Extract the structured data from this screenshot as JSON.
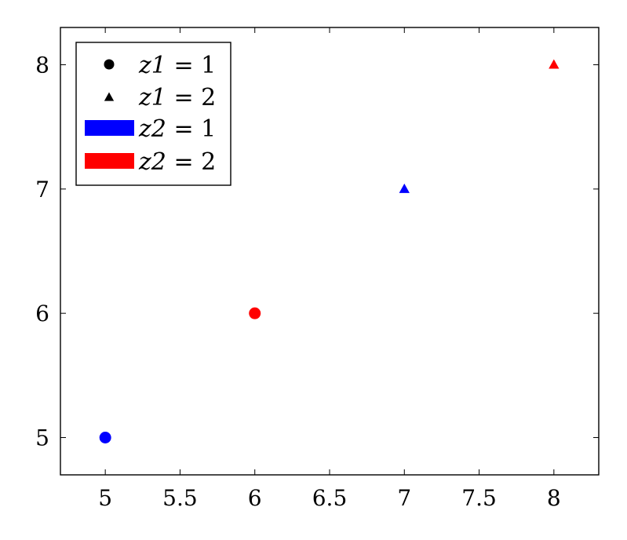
{
  "chart_data": {
    "type": "scatter",
    "title": "",
    "xlabel": "",
    "ylabel": "",
    "xlim": [
      4.7,
      8.3
    ],
    "ylim": [
      4.7,
      8.3
    ],
    "xticks": [
      5,
      5.5,
      6,
      6.5,
      7,
      7.5,
      8
    ],
    "yticks": [
      5,
      6,
      7,
      8
    ],
    "xtick_labels": [
      "5",
      "5.5",
      "6",
      "6.5",
      "7",
      "7.5",
      "8"
    ],
    "ytick_labels": [
      "5",
      "6",
      "7",
      "8"
    ],
    "grid": false,
    "legend_position": "top-left",
    "colors": {
      "z2_1": "#0000ff",
      "z2_2": "#ff0000",
      "legend_marker": "#000000"
    },
    "points": [
      {
        "x": 5,
        "y": 5,
        "z1": 1,
        "z2": 1
      },
      {
        "x": 6,
        "y": 6,
        "z1": 1,
        "z2": 2
      },
      {
        "x": 7,
        "y": 7,
        "z1": 2,
        "z2": 1
      },
      {
        "x": 8,
        "y": 8,
        "z1": 2,
        "z2": 2
      }
    ],
    "legend": [
      {
        "var": "z1",
        "value": "1",
        "marker": "circle"
      },
      {
        "var": "z1",
        "value": "2",
        "marker": "triangle"
      },
      {
        "var": "z2",
        "value": "1",
        "marker": "bar",
        "color": "#0000ff"
      },
      {
        "var": "z2",
        "value": "2",
        "marker": "bar",
        "color": "#ff0000"
      }
    ]
  }
}
